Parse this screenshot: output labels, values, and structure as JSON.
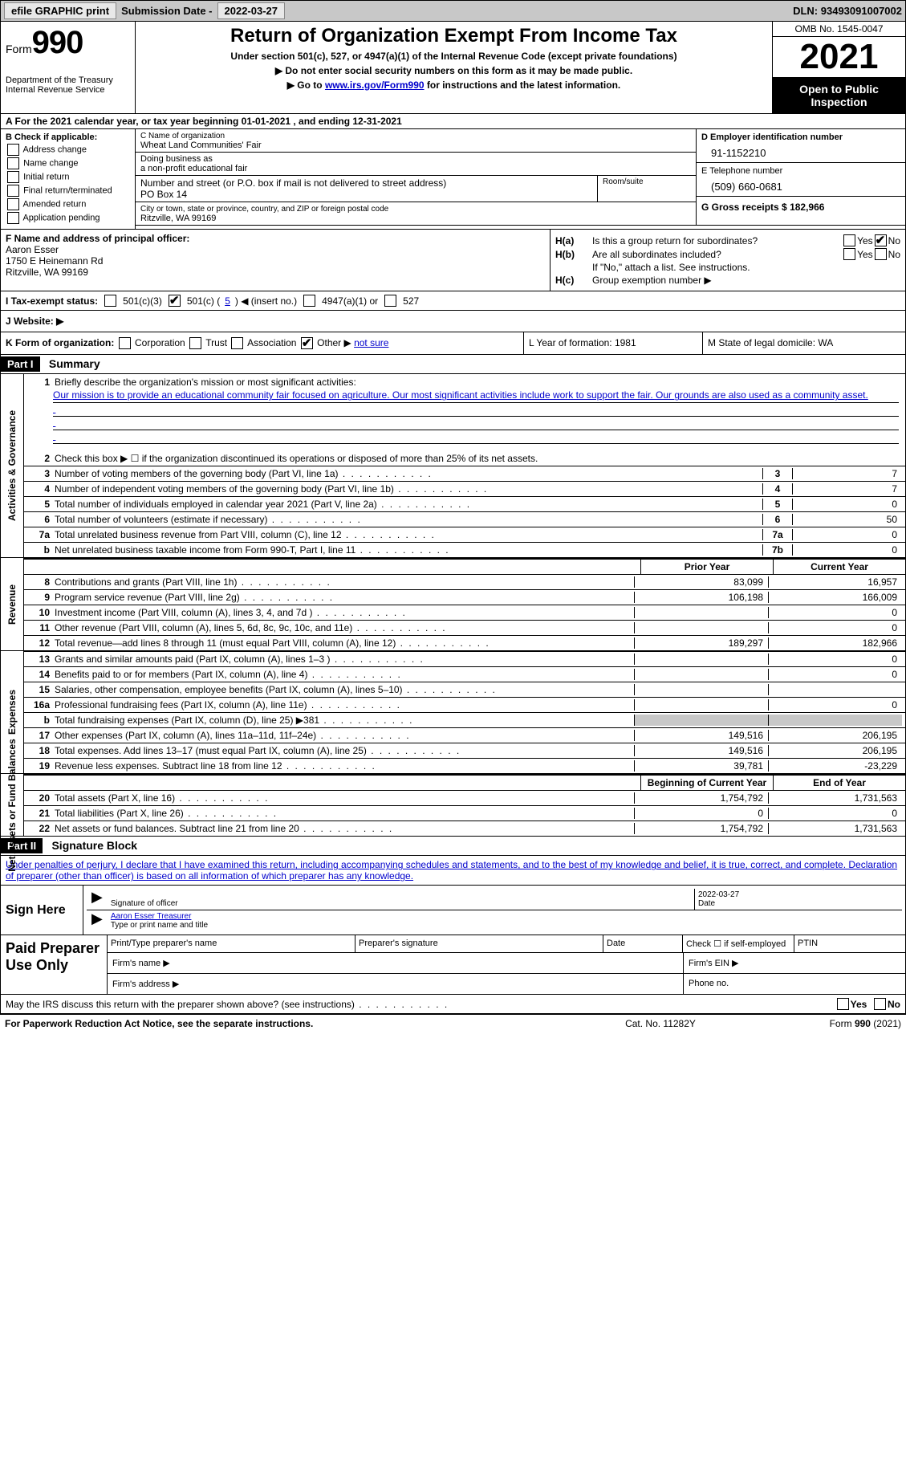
{
  "topbar": {
    "efile": "efile GRAPHIC print",
    "submission_label": "Submission Date - ",
    "submission_date": "2022-03-27",
    "dln_label": "DLN: ",
    "dln": "93493091007002"
  },
  "header": {
    "form_word": "Form",
    "form_num": "990",
    "dept": "Department of the Treasury",
    "irs": "Internal Revenue Service",
    "title": "Return of Organization Exempt From Income Tax",
    "sub1": "Under section 501(c), 527, or 4947(a)(1) of the Internal Revenue Code (except private foundations)",
    "sub2": "▶ Do not enter social security numbers on this form as it may be made public.",
    "sub3_pre": "▶ Go to ",
    "sub3_link": "www.irs.gov/Form990",
    "sub3_post": " for instructions and the latest information.",
    "omb": "OMB No. 1545-0047",
    "year": "2021",
    "open": "Open to Public Inspection"
  },
  "row_a": {
    "text": "A For the 2021 calendar year, or tax year beginning 01-01-2021    , and ending 12-31-2021"
  },
  "col_b": {
    "label": "B Check if applicable:",
    "items": [
      "Address change",
      "Name change",
      "Initial return",
      "Final return/terminated",
      "Amended return",
      "Application pending"
    ]
  },
  "col_c": {
    "name_label": "C Name of organization",
    "name": "Wheat Land Communities' Fair",
    "dba_label": "Doing business as",
    "dba": "a non-profit educational fair",
    "street_label": "Number and street (or P.O. box if mail is not delivered to street address)",
    "room_label": "Room/suite",
    "street": "PO Box 14",
    "city_label": "City or town, state or province, country, and ZIP or foreign postal code",
    "city": "Ritzville, WA  99169"
  },
  "col_d": {
    "ein_label": "D Employer identification number",
    "ein": "91-1152210",
    "phone_label": "E Telephone number",
    "phone": "(509) 660-0681",
    "gross_label": "G Gross receipts $ ",
    "gross": "182,966"
  },
  "col_f": {
    "label": "F  Name and address of principal officer:",
    "name": "Aaron Esser",
    "addr1": "1750 E Heinemann Rd",
    "addr2": "Ritzville, WA  99169"
  },
  "col_h": {
    "ha_label": "H(a)",
    "ha_text": "Is this a group return for subordinates?",
    "yes": "Yes",
    "no": "No",
    "hb_label": "H(b)",
    "hb_text": "Are all subordinates included?",
    "hb_note": "If \"No,\" attach a list. See instructions.",
    "hc_label": "H(c)",
    "hc_text": "Group exemption number ▶"
  },
  "row_i": {
    "label": "I  Tax-exempt status:",
    "o1": "501(c)(3)",
    "o2_pre": "501(c) ( ",
    "o2_val": "5",
    "o2_post": " ) ◀ (insert no.)",
    "o3": "4947(a)(1) or",
    "o4": "527"
  },
  "row_j": {
    "label": "J   Website: ▶"
  },
  "row_klm": {
    "k_label": "K Form of organization:",
    "k_opts": [
      "Corporation",
      "Trust",
      "Association",
      "Other ▶"
    ],
    "k_other_val": " not sure",
    "l": "L Year of formation: 1981",
    "m": "M State of legal domicile: WA"
  },
  "part1": {
    "hdr": "Part I",
    "title": "Summary",
    "vlabels": [
      "Activities & Governance",
      "Revenue",
      "Expenses",
      "Net Assets or Fund Balances"
    ],
    "l1_label": "1",
    "l1_text": "Briefly describe the organization's mission or most significant activities:",
    "mission": "Our mission is to provide an educational community fair focused on agriculture. Our most significant activities include work to support the fair. Our grounds are also used as a community asset.",
    "l2_label": "2",
    "l2_text": "Check this box ▶ ☐  if the organization discontinued its operations or disposed of more than 25% of its net assets.",
    "lines_ag": [
      {
        "n": "3",
        "t": "Number of voting members of the governing body (Part VI, line 1a)",
        "box": "3",
        "v": "7"
      },
      {
        "n": "4",
        "t": "Number of independent voting members of the governing body (Part VI, line 1b)",
        "box": "4",
        "v": "7"
      },
      {
        "n": "5",
        "t": "Total number of individuals employed in calendar year 2021 (Part V, line 2a)",
        "box": "5",
        "v": "0"
      },
      {
        "n": "6",
        "t": "Total number of volunteers (estimate if necessary)",
        "box": "6",
        "v": "50"
      },
      {
        "n": "7a",
        "t": "Total unrelated business revenue from Part VIII, column (C), line 12",
        "box": "7a",
        "v": "0"
      },
      {
        "n": "b",
        "t": "Net unrelated business taxable income from Form 990-T, Part I, line 11",
        "box": "7b",
        "v": "0"
      }
    ],
    "py_hdr1": "Prior Year",
    "py_hdr2": "Current Year",
    "lines_rev": [
      {
        "n": "8",
        "t": "Contributions and grants (Part VIII, line 1h)",
        "py": "83,099",
        "cy": "16,957"
      },
      {
        "n": "9",
        "t": "Program service revenue (Part VIII, line 2g)",
        "py": "106,198",
        "cy": "166,009"
      },
      {
        "n": "10",
        "t": "Investment income (Part VIII, column (A), lines 3, 4, and 7d )",
        "py": "",
        "cy": "0"
      },
      {
        "n": "11",
        "t": "Other revenue (Part VIII, column (A), lines 5, 6d, 8c, 9c, 10c, and 11e)",
        "py": "",
        "cy": "0"
      },
      {
        "n": "12",
        "t": "Total revenue—add lines 8 through 11 (must equal Part VIII, column (A), line 12)",
        "py": "189,297",
        "cy": "182,966"
      }
    ],
    "lines_exp": [
      {
        "n": "13",
        "t": "Grants and similar amounts paid (Part IX, column (A), lines 1–3 )",
        "py": "",
        "cy": "0"
      },
      {
        "n": "14",
        "t": "Benefits paid to or for members (Part IX, column (A), line 4)",
        "py": "",
        "cy": "0"
      },
      {
        "n": "15",
        "t": "Salaries, other compensation, employee benefits (Part IX, column (A), lines 5–10)",
        "py": "",
        "cy": ""
      },
      {
        "n": "16a",
        "t": "Professional fundraising fees (Part IX, column (A), line 11e)",
        "py": "",
        "cy": "0"
      },
      {
        "n": "b",
        "t": "Total fundraising expenses (Part IX, column (D), line 25) ▶381",
        "py": "GREY",
        "cy": "GREY"
      },
      {
        "n": "17",
        "t": "Other expenses (Part IX, column (A), lines 11a–11d, 11f–24e)",
        "py": "149,516",
        "cy": "206,195"
      },
      {
        "n": "18",
        "t": "Total expenses. Add lines 13–17 (must equal Part IX, column (A), line 25)",
        "py": "149,516",
        "cy": "206,195"
      },
      {
        "n": "19",
        "t": "Revenue less expenses. Subtract line 18 from line 12",
        "py": "39,781",
        "cy": "-23,229"
      }
    ],
    "na_hdr1": "Beginning of Current Year",
    "na_hdr2": "End of Year",
    "lines_na": [
      {
        "n": "20",
        "t": "Total assets (Part X, line 16)",
        "py": "1,754,792",
        "cy": "1,731,563"
      },
      {
        "n": "21",
        "t": "Total liabilities (Part X, line 26)",
        "py": "0",
        "cy": "0"
      },
      {
        "n": "22",
        "t": "Net assets or fund balances. Subtract line 21 from line 20",
        "py": "1,754,792",
        "cy": "1,731,563"
      }
    ]
  },
  "part2": {
    "hdr": "Part II",
    "title": "Signature Block",
    "decl": "Under penalties of perjury, I declare that I have examined this return, including accompanying schedules and statements, and to the best of my knowledge and belief, it is true, correct, and complete. Declaration of preparer (other than officer) is based on all information of which preparer has any knowledge.",
    "sign_here": "Sign Here",
    "sig_officer": "Signature of officer",
    "sig_date": "2022-03-27",
    "date_lbl": "Date",
    "name_title": "Aaron Esser  Treasurer",
    "name_title_lbl": "Type or print name and title",
    "paid": "Paid Preparer Use Only",
    "pt_name": "Print/Type preparer's name",
    "pt_sig": "Preparer's signature",
    "pt_date": "Date",
    "pt_check": "Check ☐ if self-employed",
    "pt_ptin": "PTIN",
    "firm_name": "Firm's name   ▶",
    "firm_ein": "Firm's EIN ▶",
    "firm_addr": "Firm's address ▶",
    "phone": "Phone no."
  },
  "may": {
    "text": "May the IRS discuss this return with the preparer shown above? (see instructions)",
    "yes": "Yes",
    "no": "No"
  },
  "footer": {
    "left": "For Paperwork Reduction Act Notice, see the separate instructions.",
    "center": "Cat. No. 11282Y",
    "right": "Form 990 (2021)"
  },
  "colors": {
    "link": "#0000cc",
    "black": "#000000",
    "grey": "#c8c8c8"
  }
}
